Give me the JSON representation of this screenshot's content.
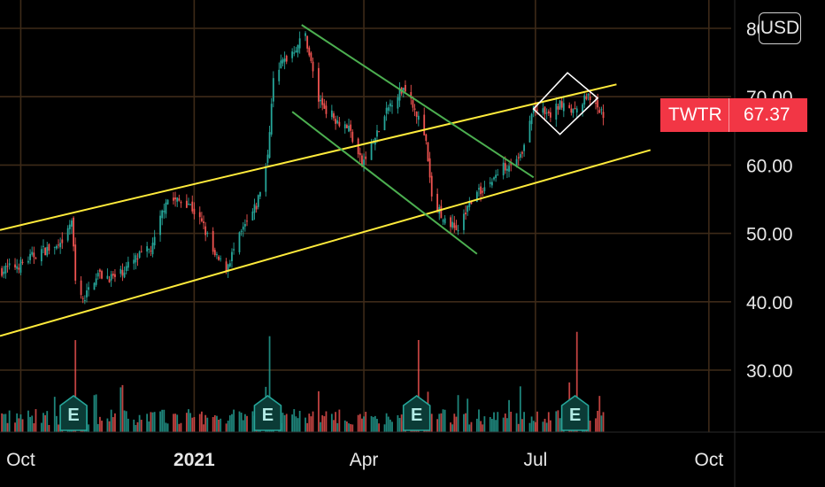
{
  "price_scale": {
    "currency_button": "USD",
    "ticks": [
      "30.00",
      "40.00",
      "50.00",
      "60.00",
      "70.00",
      "80.00"
    ]
  },
  "price_tag": {
    "symbol": "TWTR",
    "price": "67.37",
    "color": "#f23645"
  },
  "time_axis": {
    "ticks": [
      {
        "label": "Oct",
        "bold": false
      },
      {
        "label": "2021",
        "bold": true
      },
      {
        "label": "Apr",
        "bold": false
      },
      {
        "label": "Jul",
        "bold": false
      },
      {
        "label": "Oct",
        "bold": false
      }
    ]
  },
  "earnings_markers": [
    {
      "label": "E",
      "date": "2020-10-29"
    },
    {
      "label": "E",
      "date": "2021-02-09"
    },
    {
      "label": "E",
      "date": "2021-04-29"
    },
    {
      "label": "E",
      "date": "2021-07-22"
    }
  ],
  "colors": {
    "up": "#26a69a",
    "down": "#ef5350",
    "grid": "#3d2a18",
    "channel_lines": "#ffeb3b",
    "wedge_lines": "#4caf50",
    "diamond": "#ffffff",
    "earnings_badge": "#0b3b36"
  },
  "chart_data": {
    "type": "candlestick",
    "symbol": "TWTR",
    "currency": "USD",
    "last_price": 67.37,
    "ylim": [
      24,
      83
    ],
    "xlim": [
      "2020-09-20",
      "2021-10-10"
    ],
    "grid": true,
    "anchors": [
      [
        "2020-09-20",
        44.5
      ],
      [
        "2020-10-01",
        45.5
      ],
      [
        "2020-10-12",
        47.5
      ],
      [
        "2020-10-23",
        48.0
      ],
      [
        "2020-10-28",
        52.0
      ],
      [
        "2020-10-30",
        43.0
      ],
      [
        "2020-11-03",
        40.0
      ],
      [
        "2020-11-10",
        44.0
      ],
      [
        "2020-11-20",
        43.5
      ],
      [
        "2020-11-30",
        46.0
      ],
      [
        "2020-12-10",
        48.0
      ],
      [
        "2020-12-17",
        55.0
      ],
      [
        "2020-12-29",
        54.5
      ],
      [
        "2021-01-06",
        51.0
      ],
      [
        "2021-01-12",
        46.5
      ],
      [
        "2021-01-18",
        45.0
      ],
      [
        "2021-01-26",
        50.0
      ],
      [
        "2021-02-03",
        54.0
      ],
      [
        "2021-02-09",
        61.0
      ],
      [
        "2021-02-12",
        73.5
      ],
      [
        "2021-02-20",
        76.0
      ],
      [
        "2021-03-01",
        79.0
      ],
      [
        "2021-03-08",
        69.5
      ],
      [
        "2021-03-16",
        67.0
      ],
      [
        "2021-03-24",
        65.5
      ],
      [
        "2021-03-31",
        60.0
      ],
      [
        "2021-04-08",
        64.5
      ],
      [
        "2021-04-16",
        69.5
      ],
      [
        "2021-04-23",
        71.5
      ],
      [
        "2021-04-28",
        68.5
      ],
      [
        "2021-05-04",
        63.0
      ],
      [
        "2021-05-07",
        55.0
      ],
      [
        "2021-05-14",
        52.0
      ],
      [
        "2021-05-21",
        50.5
      ],
      [
        "2021-05-28",
        55.0
      ],
      [
        "2021-06-07",
        57.5
      ],
      [
        "2021-06-15",
        60.0
      ],
      [
        "2021-06-24",
        61.5
      ],
      [
        "2021-06-30",
        68.5
      ],
      [
        "2021-07-08",
        67.0
      ],
      [
        "2021-07-16",
        69.5
      ],
      [
        "2021-07-22",
        67.5
      ],
      [
        "2021-07-28",
        70.0
      ],
      [
        "2021-08-03",
        68.0
      ],
      [
        "2021-08-06",
        67.37
      ]
    ],
    "volume_spikes": [
      {
        "date": "2020-10-30",
        "color": "down"
      },
      {
        "date": "2021-02-10",
        "color": "up"
      },
      {
        "date": "2021-04-30",
        "color": "down"
      },
      {
        "date": "2021-07-23",
        "color": "down"
      }
    ],
    "drawings": [
      {
        "name": "channel-upper",
        "color": "channel_lines",
        "from": [
          "2020-09-20",
          50.5
        ],
        "to": [
          "2021-08-13",
          71.8
        ]
      },
      {
        "name": "channel-lower",
        "color": "channel_lines",
        "from": [
          "2020-09-20",
          35.0
        ],
        "to": [
          "2021-08-31",
          62.2
        ]
      },
      {
        "name": "wedge-upper",
        "color": "wedge_lines",
        "from": [
          "2021-02-27",
          80.5
        ],
        "to": [
          "2021-06-30",
          58.2
        ]
      },
      {
        "name": "wedge-lower",
        "color": "wedge_lines",
        "from": [
          "2021-02-22",
          67.8
        ],
        "to": [
          "2021-05-31",
          47.0
        ]
      }
    ],
    "diamond": {
      "left": [
        "2021-06-30",
        68.2
      ],
      "top": [
        "2021-07-18",
        73.5
      ],
      "right": [
        "2021-08-03",
        69.8
      ],
      "bottom": [
        "2021-07-14",
        64.5
      ]
    }
  }
}
